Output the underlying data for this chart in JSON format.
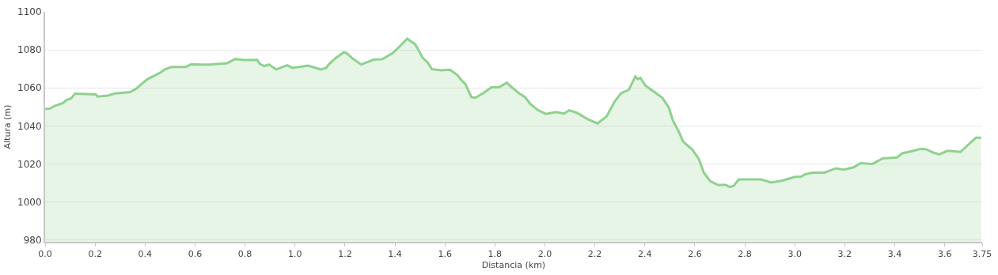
{
  "chart_data": {
    "type": "area",
    "xlabel": "Distancia (km)",
    "ylabel": "Altura (m)",
    "xlim": [
      0,
      3.75
    ],
    "ylim": [
      979,
      1100
    ],
    "xticks": [
      {
        "value": 0,
        "label": "0.0"
      },
      0.2,
      0.4,
      0.6,
      0.8,
      {
        "value": 1,
        "label": "1.0"
      },
      1.2,
      1.4,
      1.6,
      1.8,
      {
        "value": 2,
        "label": "2.0"
      },
      2.2,
      2.4,
      2.6,
      2.8,
      {
        "value": 3,
        "label": "3.0"
      },
      3.2,
      3.4,
      3.6,
      3.75
    ],
    "yticks": [
      980,
      1000,
      1020,
      1040,
      1060,
      1080,
      1100
    ],
    "grid": "y",
    "series": [
      {
        "color": "#8fd18f",
        "x": [
          0.0,
          0.02,
          0.036,
          0.073,
          0.083,
          0.104,
          0.12,
          0.203,
          0.21,
          0.25,
          0.281,
          0.34,
          0.365,
          0.394,
          0.41,
          0.437,
          0.463,
          0.479,
          0.505,
          0.5625,
          0.583,
          0.656,
          0.6875,
          0.729,
          0.76,
          0.797,
          0.849,
          0.859,
          0.877,
          0.896,
          0.925,
          0.969,
          0.99,
          1.052,
          1.104,
          1.125,
          1.135,
          1.164,
          1.195,
          1.205,
          1.231,
          1.265,
          1.314,
          1.35,
          1.392,
          1.418,
          1.449,
          1.48,
          1.49,
          1.511,
          1.532,
          1.547,
          1.584,
          1.62,
          1.651,
          1.662,
          1.682,
          1.706,
          1.722,
          1.755,
          1.786,
          1.817,
          1.848,
          1.864,
          1.9,
          1.921,
          1.942,
          1.973,
          2.004,
          2.045,
          2.077,
          2.097,
          2.128,
          2.17,
          2.211,
          2.247,
          2.279,
          2.305,
          2.336,
          2.362,
          2.372,
          2.382,
          2.403,
          2.44,
          2.47,
          2.496,
          2.512,
          2.538,
          2.553,
          2.59,
          2.616,
          2.636,
          2.662,
          2.693,
          2.724,
          2.74,
          2.756,
          2.776,
          2.865,
          2.906,
          2.947,
          2.999,
          3.025,
          3.041,
          3.072,
          3.119,
          3.165,
          3.196,
          3.233,
          3.264,
          3.311,
          3.352,
          3.409,
          3.43,
          3.476,
          3.502,
          3.523,
          3.554,
          3.578,
          3.611,
          3.663,
          3.725,
          3.746
        ],
        "values": [
          1048.8,
          1049.1,
          1050.4,
          1052.1,
          1053.4,
          1054.5,
          1057,
          1056.6,
          1055.4,
          1055.9,
          1057.1,
          1057.8,
          1059.6,
          1062.9,
          1064.6,
          1066.4,
          1068.2,
          1069.7,
          1071,
          1071,
          1072.3,
          1072.2,
          1072.6,
          1073,
          1075.2,
          1074.6,
          1074.7,
          1072.6,
          1071.5,
          1072.3,
          1069.7,
          1071.9,
          1070.5,
          1071.7,
          1069.7,
          1070.5,
          1072.3,
          1075.8,
          1078.7,
          1078.4,
          1075.4,
          1072.3,
          1074.8,
          1075.1,
          1078.4,
          1081.7,
          1085.9,
          1083,
          1081,
          1075.8,
          1073.2,
          1069.9,
          1069.2,
          1069.5,
          1066.6,
          1064.6,
          1062,
          1055.1,
          1054.8,
          1057.4,
          1060.3,
          1060.4,
          1062.7,
          1060.7,
          1056.8,
          1055.1,
          1051.5,
          1048.2,
          1046.3,
          1047.3,
          1046.5,
          1048.2,
          1046.9,
          1043.6,
          1041.3,
          1045,
          1052.8,
          1057.2,
          1059,
          1066,
          1064.6,
          1065.3,
          1061.1,
          1057.7,
          1054.8,
          1049.6,
          1043,
          1036.4,
          1031.8,
          1027.5,
          1022.7,
          1015.4,
          1010.9,
          1008.9,
          1008.9,
          1007.8,
          1008.5,
          1011.8,
          1011.8,
          1010.2,
          1011.1,
          1013.1,
          1013.3,
          1014.5,
          1015.4,
          1015.4,
          1017.7,
          1017,
          1018.1,
          1020.4,
          1020,
          1022.9,
          1023.4,
          1025.6,
          1026.9,
          1027.9,
          1027.8,
          1026,
          1025,
          1026.9,
          1026.3,
          1033.8,
          1033.8
        ]
      }
    ]
  }
}
